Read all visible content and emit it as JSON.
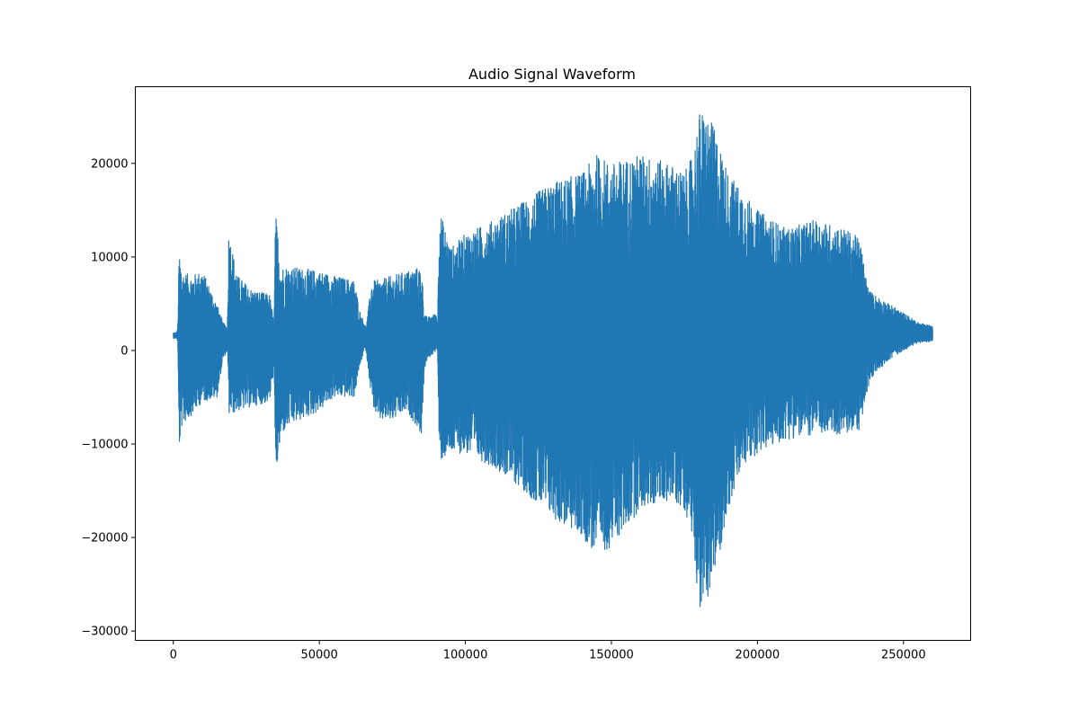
{
  "chart_data": {
    "type": "line",
    "title": "Audio Signal Waveform",
    "xlabel": "",
    "ylabel": "",
    "xlim": [
      -13000,
      273000
    ],
    "ylim": [
      -31000,
      28200
    ],
    "x_ticks": [
      0,
      50000,
      100000,
      150000,
      200000,
      250000
    ],
    "x_tick_labels": [
      "0",
      "50000",
      "100000",
      "150000",
      "200000",
      "250000"
    ],
    "y_ticks": [
      20000,
      10000,
      0,
      -10000,
      -20000,
      -30000
    ],
    "y_tick_labels": [
      "20000",
      "10000",
      "0",
      "−10000",
      "−20000",
      "−30000"
    ],
    "grid": false,
    "legend": "none",
    "color": "#1f77b4",
    "series": [
      {
        "x_range": [
          0,
          260000
        ],
        "envelope": {
          "x": [
            0,
            1000,
            1500,
            2000,
            3000,
            6000,
            10000,
            15000,
            17000,
            18500,
            19000,
            22000,
            27000,
            33000,
            34500,
            35000,
            37000,
            40000,
            50000,
            55000,
            62000,
            64000,
            65500,
            66000,
            68000,
            70000,
            75000,
            80000,
            85000,
            86000,
            87000,
            90000,
            90500,
            91000,
            95000,
            100000,
            110000,
            120000,
            130000,
            140000,
            145000,
            150000,
            155000,
            160000,
            170000,
            175000,
            178000,
            180000,
            182000,
            185000,
            190000,
            195000,
            200000,
            210000,
            220000,
            230000,
            235000,
            238000,
            240000,
            245000,
            250000,
            255000,
            260000
          ],
          "upper": [
            1900,
            1900,
            2300,
            10800,
            8500,
            8000,
            8500,
            5000,
            3000,
            2500,
            12600,
            8000,
            6500,
            6000,
            3000,
            14800,
            9000,
            9000,
            8500,
            8000,
            7500,
            4000,
            3000,
            2500,
            7500,
            7500,
            8000,
            8500,
            9000,
            4000,
            3500,
            4000,
            3000,
            15200,
            11000,
            12500,
            14000,
            16000,
            18000,
            19000,
            21000,
            20000,
            20500,
            21000,
            20000,
            19000,
            21000,
            25500,
            25500,
            24000,
            19000,
            17000,
            15000,
            13000,
            14000,
            13000,
            12000,
            6500,
            6000,
            5000,
            4000,
            3000,
            2600
          ],
          "lower": [
            1300,
            1300,
            1000,
            -10500,
            -8000,
            -7000,
            -5500,
            -5000,
            -1000,
            0,
            -7000,
            -6500,
            -6000,
            -5500,
            -2000,
            -13800,
            -9000,
            -8000,
            -6500,
            -5000,
            -5000,
            -1500,
            0,
            0,
            -5500,
            -7500,
            -7500,
            -6500,
            -9000,
            -2000,
            -1000,
            0,
            0,
            -12000,
            -11000,
            -11000,
            -12500,
            -15000,
            -18000,
            -20000,
            -22000,
            -21000,
            -19000,
            -17000,
            -16000,
            -17000,
            -20000,
            -28000,
            -27000,
            -25000,
            -17000,
            -12500,
            -11000,
            -9500,
            -9000,
            -9000,
            -8500,
            -4000,
            -2500,
            -1000,
            0,
            800,
            1000
          ]
        }
      }
    ]
  }
}
